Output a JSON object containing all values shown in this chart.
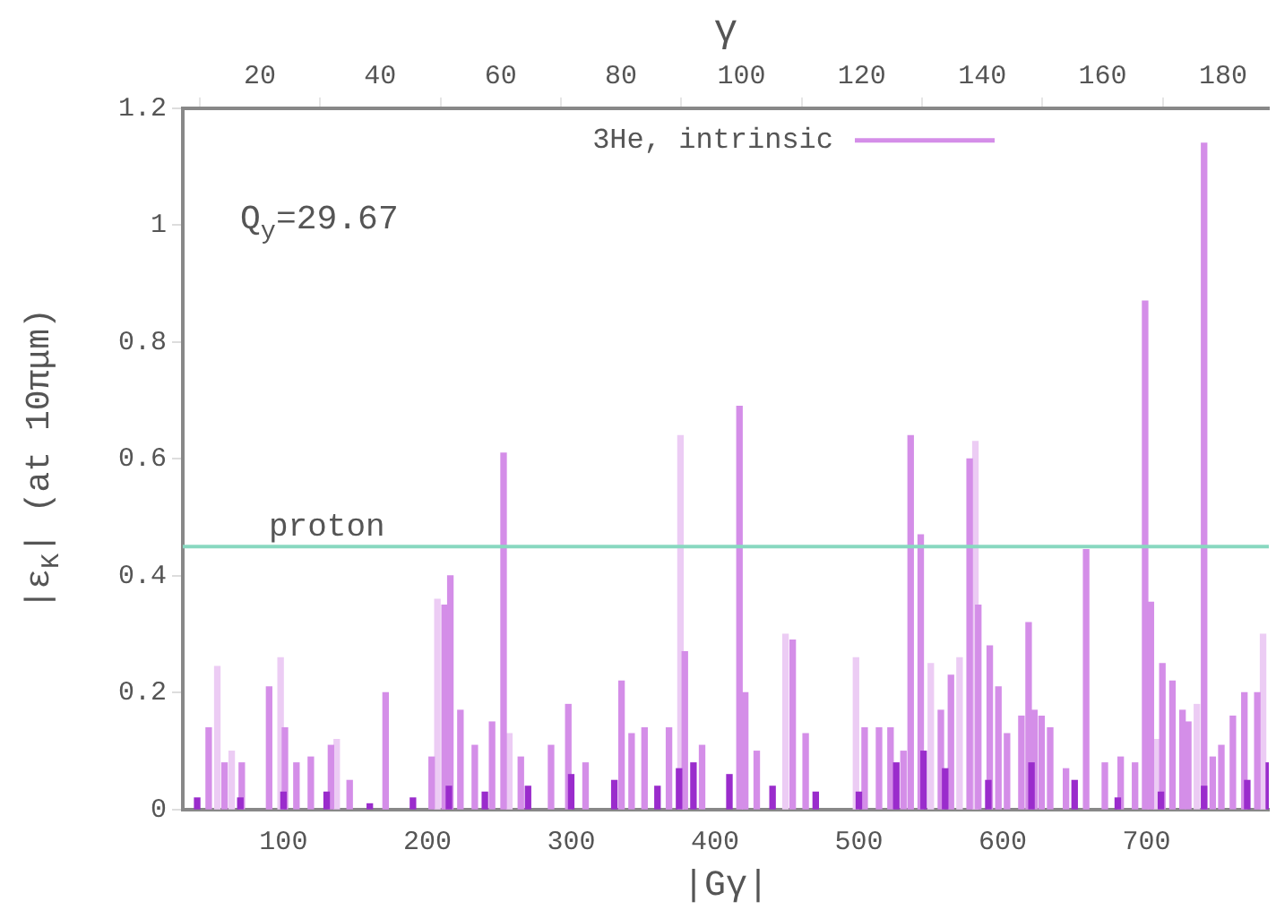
{
  "chart_data": {
    "type": "bar",
    "xlabel": "|Gγ|",
    "x2label": "γ",
    "ylabel": "|ε$_{K}$| (at 10πμm)",
    "xlim": [
      30,
      785
    ],
    "xticks": [
      100,
      200,
      300,
      400,
      500,
      600,
      700
    ],
    "x2lim": [
      7.2,
      187.6
    ],
    "x2ticks": [
      20,
      40,
      60,
      80,
      100,
      120,
      140,
      160,
      180
    ],
    "ylim": [
      0,
      1.2
    ],
    "yticks": [
      0,
      0.2,
      0.4,
      0.6,
      0.8,
      1,
      1.2
    ],
    "legend": "top",
    "grid": false,
    "annotations": [
      "Q$_{y}$=29.67"
    ],
    "ref_lines": [
      {
        "axis": "y",
        "value": 0.45,
        "label": "proton",
        "color": "#88d8c0"
      }
    ],
    "series": [
      {
        "color": "#ecccf4",
        "x": [
          54,
          64,
          98,
          137,
          207,
          257,
          376,
          449,
          498,
          550,
          570,
          581,
          707,
          735,
          781
        ],
        "values": [
          0.245,
          0.1,
          0.26,
          0.12,
          0.36,
          0.13,
          0.64,
          0.3,
          0.26,
          0.25,
          0.26,
          0.63,
          0.12,
          0.18,
          0.3
        ]
      },
      {
        "name": "3He, intrinsic",
        "color": "#d48ee8",
        "x": [
          48,
          59,
          71,
          90,
          101,
          109,
          119,
          133,
          146,
          171,
          203,
          212,
          216,
          223,
          233,
          245,
          253,
          265,
          286,
          298,
          310,
          335,
          342,
          351,
          368,
          379,
          391,
          417,
          421,
          429,
          454,
          463,
          504,
          514,
          522,
          531,
          536,
          543,
          557,
          564,
          577,
          583,
          591,
          597,
          603,
          613,
          618,
          622,
          627,
          633,
          644,
          658,
          671,
          682,
          692,
          699,
          703,
          711,
          718,
          725,
          729,
          740,
          746,
          752,
          760,
          768,
          777
        ],
        "values": [
          0.14,
          0.08,
          0.08,
          0.21,
          0.14,
          0.08,
          0.09,
          0.11,
          0.05,
          0.2,
          0.09,
          0.35,
          0.4,
          0.17,
          0.11,
          0.15,
          0.61,
          0.09,
          0.11,
          0.18,
          0.08,
          0.22,
          0.13,
          0.14,
          0.14,
          0.27,
          0.11,
          0.69,
          0.2,
          0.1,
          0.29,
          0.13,
          0.14,
          0.14,
          0.14,
          0.1,
          0.64,
          0.47,
          0.17,
          0.23,
          0.6,
          0.35,
          0.28,
          0.21,
          0.13,
          0.16,
          0.32,
          0.17,
          0.16,
          0.14,
          0.07,
          0.445,
          0.08,
          0.09,
          0.08,
          0.87,
          0.355,
          0.25,
          0.22,
          0.17,
          0.15,
          1.14,
          0.09,
          0.11,
          0.16,
          0.2,
          0.2
        ]
      },
      {
        "color": "#9a2ccc",
        "x": [
          40,
          70,
          100,
          130,
          160,
          190,
          215,
          240,
          270,
          300,
          330,
          360,
          375,
          385,
          410,
          440,
          470,
          500,
          526,
          545,
          560,
          590,
          620,
          650,
          680,
          710,
          740,
          770,
          785
        ],
        "values": [
          0.02,
          0.02,
          0.03,
          0.03,
          0.01,
          0.02,
          0.04,
          0.03,
          0.04,
          0.06,
          0.05,
          0.04,
          0.07,
          0.08,
          0.06,
          0.04,
          0.03,
          0.03,
          0.08,
          0.1,
          0.07,
          0.05,
          0.08,
          0.05,
          0.02,
          0.03,
          0.04,
          0.05,
          0.08
        ]
      }
    ]
  }
}
